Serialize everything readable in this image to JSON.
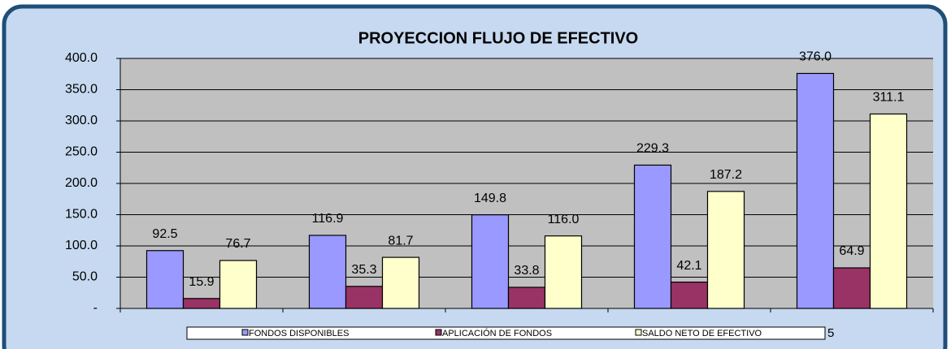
{
  "chart_data": {
    "type": "bar",
    "title": "PROYECCION FLUJO DE EFECTIVO",
    "categories": [
      null,
      null,
      null,
      null,
      null
    ],
    "series": [
      {
        "name": "FONDOS DISPONIBLES",
        "color": "#9999ff",
        "values": [
          92.5,
          116.9,
          149.8,
          229.3,
          376.0
        ],
        "value_labels": [
          "92.5",
          "116.9",
          "149.8",
          "229.3",
          "376.0"
        ]
      },
      {
        "name": "APLICACIÓN DE FONDOS",
        "color": "#993366",
        "values": [
          15.9,
          35.3,
          33.8,
          42.1,
          64.9
        ],
        "value_labels": [
          "15.9",
          "35.3",
          "33.8",
          "42.1",
          "64.9"
        ]
      },
      {
        "name": "SALDO NETO DE EFECTIVO",
        "color": "#ffffcc",
        "values": [
          76.7,
          81.7,
          116.0,
          187.2,
          311.1
        ],
        "value_labels": [
          "76.7",
          "81.7",
          "116.0",
          "187.2",
          "311.1"
        ]
      }
    ],
    "ylim": [
      0,
      400
    ],
    "yticks": [
      {
        "value": 0,
        "label": "-"
      },
      {
        "value": 50,
        "label": "50.0"
      },
      {
        "value": 100,
        "label": "100.0"
      },
      {
        "value": 150,
        "label": "150.0"
      },
      {
        "value": 200,
        "label": "200.0"
      },
      {
        "value": 250,
        "label": "250.0"
      },
      {
        "value": 300,
        "label": "300.0"
      },
      {
        "value": 350,
        "label": "350.0"
      },
      {
        "value": 400,
        "label": "400.0"
      }
    ],
    "grid": true,
    "annotation": "5"
  }
}
